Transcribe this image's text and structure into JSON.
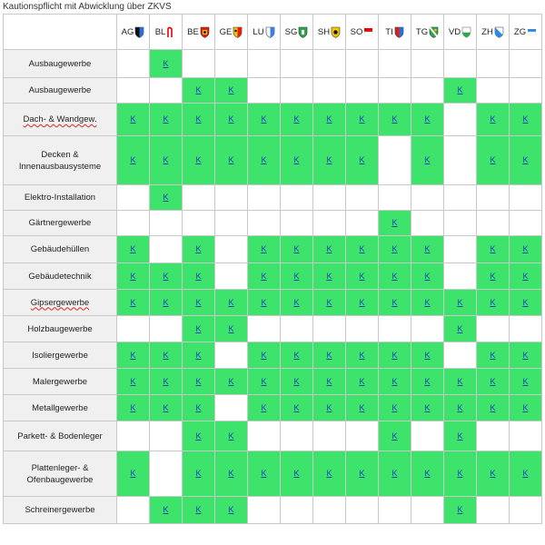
{
  "title": "Kautionspflicht mit Abwicklung über ZKVS",
  "cell_mark": "K",
  "colors": {
    "yes": "#3de36a",
    "no": "#ffffff",
    "label_bg": "#f0f0f0",
    "link": "#1b44b8"
  },
  "cantons": [
    {
      "code": "AG",
      "icon": "ag-coat-of-arms-icon"
    },
    {
      "code": "BL",
      "icon": "bl-coat-of-arms-icon"
    },
    {
      "code": "BE",
      "icon": "be-coat-of-arms-icon"
    },
    {
      "code": "GE",
      "icon": "ge-coat-of-arms-icon"
    },
    {
      "code": "LU",
      "icon": "lu-coat-of-arms-icon"
    },
    {
      "code": "SG",
      "icon": "sg-coat-of-arms-icon"
    },
    {
      "code": "SH",
      "icon": "sh-coat-of-arms-icon"
    },
    {
      "code": "SO",
      "icon": "so-coat-of-arms-icon"
    },
    {
      "code": "TI",
      "icon": "ti-coat-of-arms-icon"
    },
    {
      "code": "TG",
      "icon": "tg-coat-of-arms-icon"
    },
    {
      "code": "VD",
      "icon": "vd-coat-of-arms-icon"
    },
    {
      "code": "ZH",
      "icon": "zh-coat-of-arms-icon"
    },
    {
      "code": "ZG",
      "icon": "zg-coat-of-arms-icon"
    }
  ],
  "rows": [
    {
      "label": "Ausbaugewerbe",
      "cells": [
        0,
        1,
        0,
        0,
        0,
        0,
        0,
        0,
        0,
        0,
        0,
        0,
        0
      ]
    },
    {
      "label": "Ausbaugewerbe",
      "cells": [
        0,
        0,
        1,
        1,
        0,
        0,
        0,
        0,
        0,
        0,
        1,
        0,
        0
      ]
    },
    {
      "label": "Dach- & Wandgew.",
      "cells": [
        1,
        1,
        1,
        1,
        1,
        1,
        1,
        1,
        1,
        1,
        0,
        1,
        1
      ]
    },
    {
      "label": "Decken & Innenausbausysteme",
      "cells": [
        1,
        1,
        1,
        1,
        1,
        1,
        1,
        1,
        0,
        1,
        0,
        1,
        1
      ]
    },
    {
      "label": "Elektro-Installation",
      "cells": [
        0,
        1,
        0,
        0,
        0,
        0,
        0,
        0,
        0,
        0,
        0,
        0,
        0
      ]
    },
    {
      "label": "Gärtnergewerbe",
      "cells": [
        0,
        0,
        0,
        0,
        0,
        0,
        0,
        0,
        1,
        0,
        0,
        0,
        0
      ]
    },
    {
      "label": "Gebäudehüllen",
      "cells": [
        1,
        0,
        1,
        0,
        1,
        1,
        1,
        1,
        1,
        1,
        0,
        1,
        1
      ]
    },
    {
      "label": "Gebäudetechnik",
      "cells": [
        1,
        1,
        1,
        0,
        1,
        1,
        1,
        1,
        1,
        1,
        0,
        1,
        1
      ]
    },
    {
      "label": "Gipsergewerbe",
      "cells": [
        1,
        1,
        1,
        1,
        1,
        1,
        1,
        1,
        1,
        1,
        1,
        1,
        1
      ]
    },
    {
      "label": "Holzbaugewerbe",
      "cells": [
        0,
        0,
        1,
        1,
        0,
        0,
        0,
        0,
        0,
        0,
        1,
        0,
        0
      ]
    },
    {
      "label": "Isoliergewerbe",
      "cells": [
        1,
        1,
        1,
        0,
        1,
        1,
        1,
        1,
        1,
        1,
        0,
        1,
        1
      ]
    },
    {
      "label": "Malergewerbe",
      "cells": [
        1,
        1,
        1,
        1,
        1,
        1,
        1,
        1,
        1,
        1,
        1,
        1,
        1
      ]
    },
    {
      "label": "Metallgewerbe",
      "cells": [
        1,
        1,
        1,
        0,
        1,
        1,
        1,
        1,
        1,
        1,
        1,
        1,
        1
      ]
    },
    {
      "label": "Parkett- & Bodenleger",
      "cells": [
        0,
        0,
        1,
        1,
        0,
        0,
        0,
        0,
        1,
        0,
        1,
        0,
        0
      ]
    },
    {
      "label": "Plattenleger- & Ofenbaugewerbe",
      "cells": [
        1,
        0,
        1,
        1,
        1,
        1,
        1,
        1,
        1,
        1,
        1,
        1,
        1
      ]
    },
    {
      "label": "Schreinergewerbe",
      "cells": [
        0,
        1,
        1,
        1,
        0,
        0,
        0,
        0,
        0,
        0,
        1,
        0,
        0
      ]
    }
  ]
}
